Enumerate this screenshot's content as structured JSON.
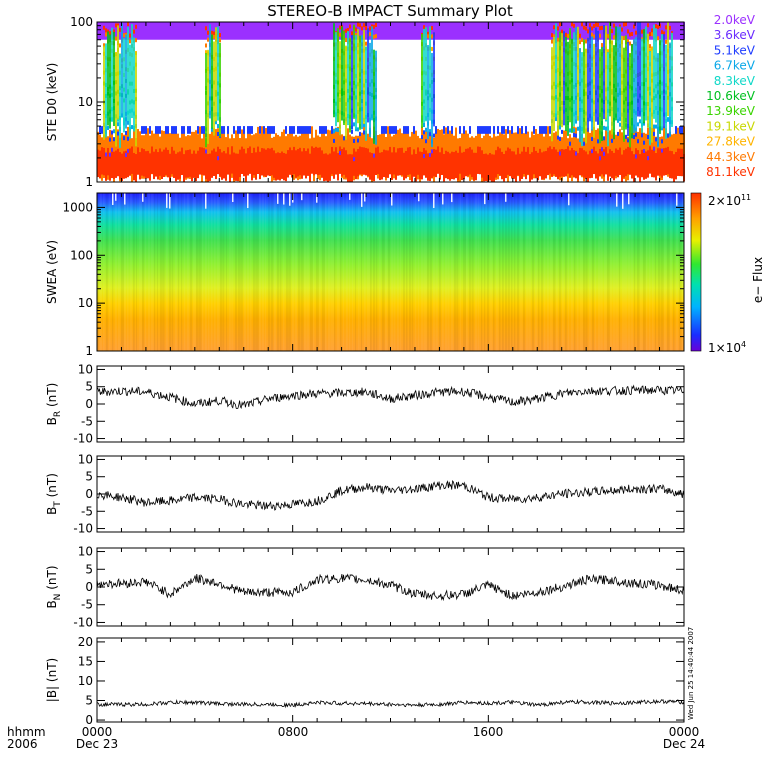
{
  "title": "STEREO-B IMPACT Summary Plot",
  "footer": {
    "left_top": "hhmm",
    "left_bottom": "2006",
    "start_time": "0000",
    "start_date": "Dec 23",
    "end_time": "0000",
    "end_date": "Dec 24",
    "mid_ticks": [
      "0800",
      "1600"
    ]
  },
  "timestamp": "Wed Jun 25 14:40:44 2007",
  "chart_data": [
    {
      "type": "line",
      "ylabel": "STE D0 (keV)",
      "yscale": "log",
      "ylim": [
        1,
        100
      ],
      "yticks": [
        "1",
        "10",
        "100"
      ],
      "series": [
        {
          "name": "2.0keV",
          "color": "#9b30ff"
        },
        {
          "name": "3.6keV",
          "color": "#6a2bff"
        },
        {
          "name": "5.1keV",
          "color": "#1f3cff"
        },
        {
          "name": "6.7keV",
          "color": "#0aa8e8"
        },
        {
          "name": "8.3keV",
          "color": "#10d8c8"
        },
        {
          "name": "10.6keV",
          "color": "#00c020"
        },
        {
          "name": "13.9keV",
          "color": "#3ad400"
        },
        {
          "name": "19.1keV",
          "color": "#c8d800"
        },
        {
          "name": "27.8keV",
          "color": "#ffb400"
        },
        {
          "name": "44.3keV",
          "color": "#ff7a00"
        },
        {
          "name": "81.1keV",
          "color": "#ff3300"
        }
      ]
    },
    {
      "type": "heatmap",
      "ylabel": "SWEA (eV)",
      "yscale": "log",
      "ylim": [
        1,
        2000
      ],
      "yticks": [
        "1",
        "10",
        "100",
        "1000"
      ],
      "colorbar": {
        "label": "e− Flux",
        "max_label": "2×10",
        "max_exp": "11",
        "min_label": "1×10",
        "min_exp": "4"
      }
    },
    {
      "type": "line",
      "ylabel_main": "B",
      "ylabel_sub": "R",
      "ylabel_unit": " (nT)",
      "ylim": [
        -11,
        11
      ],
      "yticks": [
        "-10",
        "-5",
        "0",
        "5",
        "10"
      ],
      "x": [
        0,
        1,
        2,
        3,
        4,
        5,
        6,
        7,
        8,
        9,
        10,
        11,
        12,
        13,
        14,
        15,
        16,
        17,
        18,
        19,
        20,
        21,
        22,
        23,
        24
      ],
      "values": [
        3.5,
        3.8,
        3.5,
        2,
        0,
        1,
        -0.5,
        1.5,
        2.5,
        3,
        3.2,
        3.5,
        1.5,
        2.5,
        3.5,
        3.6,
        2,
        0.5,
        1.5,
        3,
        3.8,
        3.8,
        4,
        4,
        3.8
      ]
    },
    {
      "type": "line",
      "ylabel_main": "B",
      "ylabel_sub": "T",
      "ylabel_unit": " (nT)",
      "ylim": [
        -11,
        11
      ],
      "yticks": [
        "-10",
        "-5",
        "0",
        "5",
        "10"
      ],
      "x": [
        0,
        1,
        2,
        3,
        4,
        5,
        6,
        7,
        8,
        9,
        10,
        11,
        12,
        13,
        14,
        15,
        16,
        17,
        18,
        19,
        20,
        21,
        22,
        23,
        24
      ],
      "values": [
        0,
        -1,
        -2.5,
        -2,
        -1,
        -1.5,
        -3,
        -3.5,
        -3,
        -2,
        1,
        2,
        1,
        1.5,
        2.5,
        2.5,
        -1,
        -1.5,
        -1,
        0,
        0.5,
        1,
        1.5,
        1.5,
        0
      ]
    },
    {
      "type": "line",
      "ylabel_main": "B",
      "ylabel_sub": "N",
      "ylabel_unit": " (nT)",
      "ylim": [
        -11,
        11
      ],
      "yticks": [
        "-10",
        "-5",
        "0",
        "5",
        "10"
      ],
      "x": [
        0,
        1,
        2,
        3,
        4,
        5,
        6,
        7,
        8,
        9,
        10,
        11,
        12,
        13,
        14,
        15,
        16,
        17,
        18,
        19,
        20,
        21,
        22,
        23,
        24
      ],
      "values": [
        1,
        1,
        1.5,
        -2,
        2.5,
        1,
        -1.5,
        -1.5,
        -1.5,
        2,
        2.5,
        2,
        0.5,
        -2,
        -2.5,
        -2,
        0.5,
        -2.5,
        -1.5,
        0,
        2,
        2,
        1,
        0.5,
        -1
      ]
    },
    {
      "type": "line",
      "ylabel": "|B| (nT)",
      "ylim": [
        -0.5,
        21
      ],
      "yticks": [
        "0",
        "5",
        "10",
        "15",
        "20"
      ],
      "x": [
        0,
        1,
        2,
        3,
        4,
        5,
        6,
        7,
        8,
        9,
        10,
        11,
        12,
        13,
        14,
        15,
        16,
        17,
        18,
        19,
        20,
        21,
        22,
        23,
        24
      ],
      "values": [
        4,
        4,
        4,
        4.5,
        4.5,
        4.2,
        4,
        4,
        3.8,
        4.5,
        4.3,
        4.2,
        4,
        3.8,
        4,
        4.5,
        4.3,
        4.5,
        3.8,
        4.5,
        4.6,
        4.3,
        4.5,
        4.8,
        4.6
      ]
    }
  ]
}
